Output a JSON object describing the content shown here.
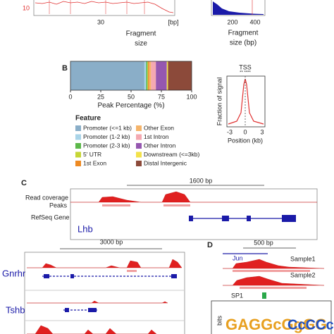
{
  "panels": {
    "a": {
      "tick_30": "30",
      "tick_bp": "[bp]",
      "left_y_tick": "10",
      "xlabel_1": "Fragment",
      "xlabel_2": "size",
      "right_ticks": [
        "200",
        "400"
      ],
      "right_xlabel_1": "Fragment",
      "right_xlabel_2": "size (bp)"
    },
    "b": {
      "label": "B",
      "tss_title": "TSS",
      "tss_ylabel": "Fraction of signal",
      "tss_xticks": [
        "-3",
        "0",
        "3"
      ],
      "tss_xlabel": "Position (kb)"
    },
    "c": {
      "label": "C",
      "scale": "1600 bp",
      "track_coverage": "Read coverage",
      "track_peaks": "Peaks",
      "track_gene": "RefSeq Gene",
      "gene": "Lhb",
      "scale_2": "3000 bp",
      "gene_2": "Gnrhr",
      "gene_3": "Tshb"
    },
    "d": {
      "label": "D",
      "scale": "500 bp",
      "gene": "Jun",
      "sample1": "Sample1",
      "sample2": "Sample2",
      "motif": "SP1",
      "logo_ylabel": "bits"
    }
  },
  "chart_data": {
    "type": "stacked_bar",
    "xlabel": "Peak Percentage (%)",
    "legend_title": "Feature",
    "xlim": [
      0,
      100
    ],
    "xticks": [
      0,
      25,
      50,
      75,
      100
    ],
    "series": [
      {
        "name": "Promoter (<=1 kb)",
        "color": "#8aaec8",
        "values": [
          61
        ]
      },
      {
        "name": "Promoter (1-2 kb)",
        "color": "#a9d4e8",
        "values": [
          1.5
        ]
      },
      {
        "name": "Promoter (2-3 kb)",
        "color": "#5cb84a",
        "values": [
          1
        ]
      },
      {
        "name": "5' UTR",
        "color": "#c6d636",
        "values": [
          0.5
        ]
      },
      {
        "name": "1st Exon",
        "color": "#ee8a22",
        "values": [
          1
        ]
      },
      {
        "name": "Other Exon",
        "color": "#f5b46a",
        "values": [
          1.5
        ]
      },
      {
        "name": "1st Intron",
        "color": "#f4a9b2",
        "values": [
          4
        ]
      },
      {
        "name": "Other Intron",
        "color": "#9557b0",
        "values": [
          9
        ]
      },
      {
        "name": "Downstream (<=3kb)",
        "color": "#f3e24a",
        "values": [
          1
        ]
      },
      {
        "name": "Distal Intergenic",
        "color": "#8c4a3a",
        "values": [
          19.5
        ]
      }
    ]
  }
}
